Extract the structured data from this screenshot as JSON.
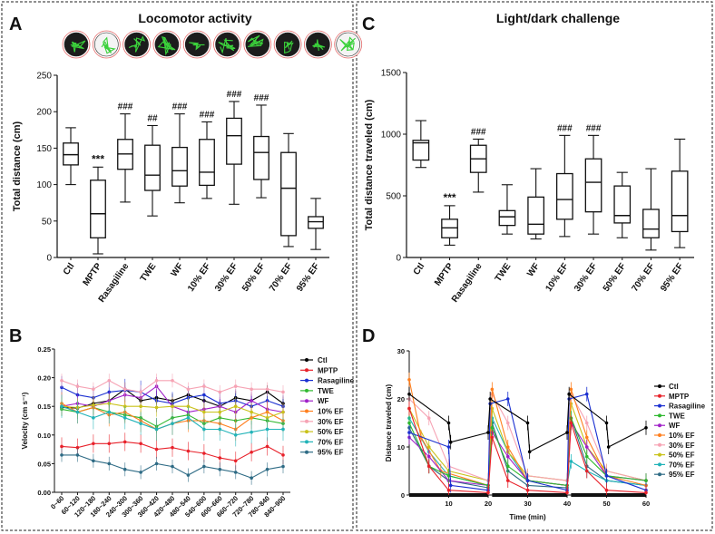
{
  "panels": {
    "A": {
      "letter": "A",
      "title": "Locomotor activity"
    },
    "B": {
      "letter": "B"
    },
    "C": {
      "letter": "C",
      "title": "Light/dark challenge"
    },
    "D": {
      "letter": "D"
    }
  },
  "colors": {
    "Ctl": "#000000",
    "MPTP": "#e8212a",
    "Rasagiline": "#1a2fd1",
    "TWE": "#2fb82f",
    "WF": "#a020c8",
    "10% EF": "#ff7f1e",
    "30% EF": "#f6a3b4",
    "50% EF": "#c9c21a",
    "70% EF": "#21b3b8",
    "95% EF": "#2e6b85"
  },
  "chart_data": [
    {
      "panel": "A",
      "type": "box",
      "title": "Locomotor activity",
      "ylabel": "Total distance (cm)",
      "ylim": [
        0,
        250
      ],
      "yticks": [
        0,
        50,
        100,
        150,
        200,
        250
      ],
      "categories": [
        "Ctl",
        "MPTP",
        "Rasagiline",
        "TWE",
        "WF",
        "10% EF",
        "30% EF",
        "50% EF",
        "70% EF",
        "95% EF"
      ],
      "boxes": [
        {
          "min": 100,
          "q1": 127,
          "median": 141,
          "q3": 157,
          "max": 178,
          "sig": ""
        },
        {
          "min": 5,
          "q1": 27,
          "median": 60,
          "q3": 106,
          "max": 124,
          "sig": "***"
        },
        {
          "min": 76,
          "q1": 121,
          "median": 142,
          "q3": 162,
          "max": 197,
          "sig": "###"
        },
        {
          "min": 57,
          "q1": 92,
          "median": 113,
          "q3": 154,
          "max": 181,
          "sig": "##"
        },
        {
          "min": 75,
          "q1": 98,
          "median": 119,
          "q3": 151,
          "max": 197,
          "sig": "###"
        },
        {
          "min": 81,
          "q1": 99,
          "median": 117,
          "q3": 162,
          "max": 186,
          "sig": "###"
        },
        {
          "min": 73,
          "q1": 128,
          "median": 167,
          "q3": 191,
          "max": 214,
          "sig": "###"
        },
        {
          "min": 82,
          "q1": 107,
          "median": 144,
          "q3": 166,
          "max": 209,
          "sig": "###"
        },
        {
          "min": 15,
          "q1": 30,
          "median": 95,
          "q3": 144,
          "max": 170,
          "sig": ""
        },
        {
          "min": 11,
          "q1": 40,
          "median": 49,
          "q3": 56,
          "max": 81,
          "sig": ""
        }
      ]
    },
    {
      "panel": "C",
      "type": "box",
      "title": "Light/dark challenge",
      "ylabel": "Total distance traveled (cm)",
      "ylim": [
        0,
        1500
      ],
      "yticks": [
        0,
        500,
        1000,
        1500
      ],
      "categories": [
        "Ctl",
        "MPTP",
        "Rasagiline",
        "TWE",
        "WF",
        "10% EF",
        "30% EF",
        "50% EF",
        "70% EF",
        "95% EF"
      ],
      "boxes": [
        {
          "min": 730,
          "q1": 790,
          "median": 930,
          "q3": 950,
          "max": 1110,
          "sig": ""
        },
        {
          "min": 100,
          "q1": 160,
          "median": 240,
          "q3": 310,
          "max": 420,
          "sig": "***"
        },
        {
          "min": 530,
          "q1": 690,
          "median": 800,
          "q3": 910,
          "max": 960,
          "sig": "###"
        },
        {
          "min": 190,
          "q1": 260,
          "median": 330,
          "q3": 380,
          "max": 590,
          "sig": ""
        },
        {
          "min": 150,
          "q1": 190,
          "median": 270,
          "q3": 490,
          "max": 720,
          "sig": ""
        },
        {
          "min": 170,
          "q1": 310,
          "median": 470,
          "q3": 680,
          "max": 990,
          "sig": "###"
        },
        {
          "min": 190,
          "q1": 370,
          "median": 610,
          "q3": 800,
          "max": 990,
          "sig": "###"
        },
        {
          "min": 160,
          "q1": 280,
          "median": 340,
          "q3": 580,
          "max": 690,
          "sig": ""
        },
        {
          "min": 60,
          "q1": 160,
          "median": 230,
          "q3": 390,
          "max": 720,
          "sig": ""
        },
        {
          "min": 80,
          "q1": 210,
          "median": 340,
          "q3": 700,
          "max": 960,
          "sig": ""
        }
      ]
    },
    {
      "panel": "B",
      "type": "line",
      "ylabel": "Velocity (cm s⁻¹)",
      "ylim": [
        0,
        0.25
      ],
      "yticks": [
        "0.00",
        "0.05",
        "0.10",
        "0.15",
        "0.20",
        "0.25"
      ],
      "categories": [
        "0~60",
        "60~120",
        "120~180",
        "180~240",
        "240~300",
        "300~360",
        "360~420",
        "420~480",
        "480~540",
        "540~600",
        "600~660",
        "660~720",
        "720~780",
        "780~840",
        "840~900"
      ],
      "series": [
        {
          "name": "Ctl",
          "values": [
            0.148,
            0.147,
            0.155,
            0.16,
            0.18,
            0.16,
            0.165,
            0.16,
            0.17,
            0.16,
            0.15,
            0.165,
            0.16,
            0.175,
            0.155
          ]
        },
        {
          "name": "MPTP",
          "values": [
            0.08,
            0.078,
            0.085,
            0.085,
            0.088,
            0.085,
            0.075,
            0.078,
            0.072,
            0.068,
            0.06,
            0.055,
            0.07,
            0.08,
            0.065
          ]
        },
        {
          "name": "Rasagiline",
          "values": [
            0.183,
            0.17,
            0.165,
            0.175,
            0.178,
            0.175,
            0.16,
            0.155,
            0.165,
            0.17,
            0.155,
            0.16,
            0.15,
            0.16,
            0.15
          ]
        },
        {
          "name": "TWE",
          "values": [
            0.145,
            0.14,
            0.148,
            0.14,
            0.135,
            0.13,
            0.115,
            0.13,
            0.135,
            0.12,
            0.13,
            0.125,
            0.13,
            0.125,
            0.12
          ]
        },
        {
          "name": "WF",
          "values": [
            0.15,
            0.155,
            0.15,
            0.16,
            0.17,
            0.165,
            0.185,
            0.15,
            0.14,
            0.145,
            0.15,
            0.14,
            0.16,
            0.145,
            0.14
          ]
        },
        {
          "name": "10% EF",
          "values": [
            0.155,
            0.14,
            0.148,
            0.135,
            0.14,
            0.125,
            0.11,
            0.12,
            0.125,
            0.125,
            0.12,
            0.11,
            0.13,
            0.14,
            0.125
          ]
        },
        {
          "name": "30% EF",
          "values": [
            0.195,
            0.185,
            0.18,
            0.195,
            0.18,
            0.175,
            0.195,
            0.195,
            0.18,
            0.185,
            0.175,
            0.185,
            0.18,
            0.18,
            0.175
          ]
        },
        {
          "name": "50% EF",
          "values": [
            0.15,
            0.148,
            0.152,
            0.155,
            0.15,
            0.15,
            0.148,
            0.15,
            0.15,
            0.14,
            0.14,
            0.15,
            0.14,
            0.13,
            0.14
          ]
        },
        {
          "name": "70% EF",
          "values": [
            0.15,
            0.14,
            0.13,
            0.14,
            0.13,
            0.12,
            0.11,
            0.12,
            0.13,
            0.11,
            0.11,
            0.1,
            0.105,
            0.11,
            0.11
          ]
        },
        {
          "name": "95% EF",
          "values": [
            0.065,
            0.065,
            0.055,
            0.05,
            0.04,
            0.035,
            0.05,
            0.045,
            0.03,
            0.045,
            0.04,
            0.035,
            0.025,
            0.04,
            0.045
          ]
        }
      ]
    },
    {
      "panel": "D",
      "type": "line",
      "xlabel": "Time (min)",
      "ylabel": "Distance traveled (cm)",
      "xlim": [
        0,
        60
      ],
      "ylim": [
        0,
        30
      ],
      "xticks": [
        10,
        20,
        30,
        40,
        50,
        60
      ],
      "yticks": [
        0,
        10,
        20,
        30
      ],
      "series": [
        {
          "name": "Ctl",
          "x": [
            0,
            10,
            10.5,
            20,
            20.5,
            30,
            30.5,
            40,
            40.5,
            50,
            50.5,
            60
          ],
          "y": [
            21,
            15,
            11,
            13,
            20,
            15,
            9,
            13,
            21,
            15,
            10,
            14
          ]
        },
        {
          "name": "MPTP",
          "x": [
            0,
            5,
            10,
            20,
            21,
            25,
            30,
            40,
            41,
            45,
            50,
            60
          ],
          "y": [
            18,
            6,
            1,
            0.5,
            12,
            3,
            1,
            0.5,
            15,
            5,
            1,
            0.5
          ]
        },
        {
          "name": "Rasagiline",
          "x": [
            0,
            10,
            10.5,
            20,
            20.5,
            25,
            30,
            40,
            40.5,
            45,
            50,
            60
          ],
          "y": [
            13,
            10,
            2,
            1,
            19,
            20,
            3,
            1,
            20,
            21,
            4,
            1
          ]
        },
        {
          "name": "TWE",
          "x": [
            0,
            5,
            10,
            20,
            21,
            25,
            30,
            40,
            41,
            45,
            50,
            60
          ],
          "y": [
            15,
            6,
            4,
            2,
            14,
            6,
            3,
            2,
            16,
            8,
            4,
            3
          ]
        },
        {
          "name": "WF",
          "x": [
            0,
            5,
            10,
            20,
            21,
            25,
            30,
            40,
            41,
            45,
            50,
            60
          ],
          "y": [
            12,
            8,
            3,
            2,
            13,
            8,
            3,
            2,
            15,
            10,
            4,
            3
          ]
        },
        {
          "name": "10% EF",
          "x": [
            0,
            3,
            8,
            20,
            21,
            25,
            30,
            40,
            41,
            45,
            50,
            60
          ],
          "y": [
            24,
            12,
            5,
            2,
            22,
            10,
            3,
            2,
            22,
            12,
            4,
            2
          ]
        },
        {
          "name": "30% EF",
          "x": [
            0,
            5,
            10,
            20,
            21,
            25,
            30,
            40,
            41,
            45,
            50,
            60
          ],
          "y": [
            20,
            16,
            6,
            3,
            21,
            15,
            4,
            3,
            21,
            15,
            5,
            3
          ]
        },
        {
          "name": "50% EF",
          "x": [
            0,
            5,
            10,
            20,
            21,
            25,
            30,
            40,
            41,
            45,
            50,
            60
          ],
          "y": [
            18,
            10,
            5,
            3,
            18,
            9,
            4,
            3,
            19,
            10,
            5,
            3
          ]
        },
        {
          "name": "70% EF",
          "x": [
            0,
            5,
            10,
            20,
            21,
            25,
            30,
            40,
            41,
            45,
            50,
            60
          ],
          "y": [
            16,
            9,
            4,
            2,
            16,
            9,
            3,
            2,
            7,
            5,
            3,
            2
          ]
        },
        {
          "name": "95% EF",
          "x": [
            0,
            5,
            10,
            20,
            21,
            25,
            30,
            40,
            41,
            45,
            50,
            60
          ],
          "y": [
            14,
            6,
            3,
            1.5,
            15,
            5,
            2,
            1.5,
            16,
            6,
            3,
            2
          ]
        }
      ]
    }
  ]
}
